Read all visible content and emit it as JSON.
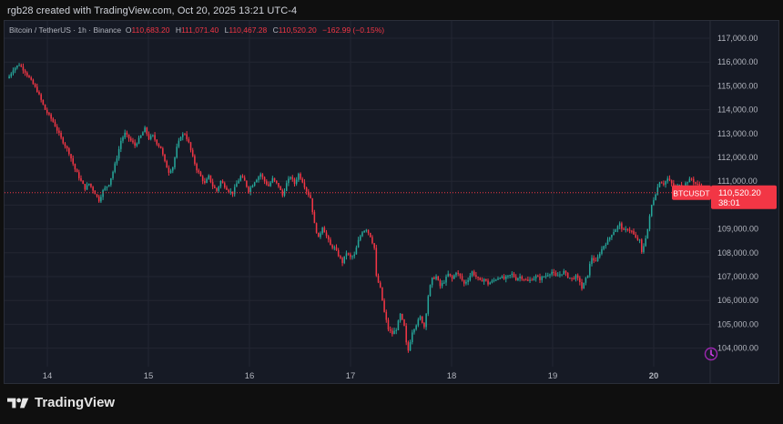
{
  "header": {
    "text": "rgb28 created with TradingView.com, Oct 20, 2025 13:21 UTC-4"
  },
  "legend": {
    "symbol": "Bitcoin / TetherUS · 1h · Binance",
    "o_label": "O",
    "o_value": "110,683.20",
    "h_label": "H",
    "h_value": "111,071.40",
    "l_label": "L",
    "l_value": "110,467.28",
    "c_label": "C",
    "c_value": "110,520.20",
    "change": "−162.99 (−0.15%)"
  },
  "price_tag": {
    "symbol": "BTCUSDT",
    "price": "110,520.20",
    "countdown": "38:01"
  },
  "footer": {
    "brand": "TradingView"
  },
  "icons": {
    "logo": "tradingview-logo-icon",
    "alert": "alert-clock-icon"
  },
  "colors": {
    "up": "#26a69a",
    "down": "#f23645",
    "background": "#161a25",
    "grid": "#232632"
  },
  "chart_data": {
    "type": "candlestick",
    "x_tick_labels": [
      "14",
      "15",
      "16",
      "17",
      "18",
      "19",
      "20"
    ],
    "y_tick_labels": [
      "104,000.00",
      "105,000.00",
      "106,000.00",
      "107,000.00",
      "108,000.00",
      "109,000.00",
      "110,000.00",
      "111,000.00",
      "112,000.00",
      "113,000.00",
      "114,000.00",
      "115,000.00",
      "116,000.00",
      "117,000.00"
    ],
    "ylim": [
      103500,
      117500
    ],
    "last_price": 110520.2,
    "grid": true,
    "series": [
      {
        "name": "",
        "close_path": [
          [
            0,
            115400
          ],
          [
            2,
            115700
          ],
          [
            5,
            115900
          ],
          [
            8,
            115600
          ],
          [
            11,
            115200
          ],
          [
            14,
            114800
          ],
          [
            18,
            114000
          ],
          [
            22,
            113500
          ],
          [
            26,
            112800
          ],
          [
            30,
            112200
          ],
          [
            33,
            111500
          ],
          [
            36,
            111000
          ],
          [
            38,
            110700
          ],
          [
            40,
            110900
          ],
          [
            43,
            110500
          ],
          [
            45,
            110200
          ],
          [
            47,
            110600
          ],
          [
            50,
            110900
          ],
          [
            52,
            111400
          ],
          [
            54,
            112000
          ],
          [
            56,
            112700
          ],
          [
            58,
            113000
          ],
          [
            60,
            112800
          ],
          [
            63,
            112500
          ],
          [
            66,
            112900
          ],
          [
            68,
            113200
          ],
          [
            70,
            112800
          ],
          [
            72,
            112900
          ],
          [
            74,
            112600
          ],
          [
            76,
            112400
          ],
          [
            78,
            111800
          ],
          [
            80,
            111400
          ],
          [
            82,
            111600
          ],
          [
            84,
            112400
          ],
          [
            86,
            112900
          ],
          [
            88,
            113000
          ],
          [
            90,
            112600
          ],
          [
            92,
            112000
          ],
          [
            94,
            111500
          ],
          [
            96,
            111200
          ],
          [
            98,
            110900
          ],
          [
            100,
            111200
          ],
          [
            102,
            110800
          ],
          [
            104,
            110600
          ],
          [
            106,
            111000
          ],
          [
            108,
            110800
          ],
          [
            110,
            110600
          ],
          [
            112,
            110500
          ],
          [
            114,
            110900
          ],
          [
            116,
            111200
          ],
          [
            118,
            111000
          ],
          [
            120,
            110600
          ],
          [
            123,
            111000
          ],
          [
            126,
            111300
          ],
          [
            128,
            111000
          ],
          [
            130,
            110800
          ],
          [
            132,
            111100
          ],
          [
            135,
            110800
          ],
          [
            137,
            110400
          ],
          [
            139,
            110900
          ],
          [
            141,
            111200
          ],
          [
            143,
            110900
          ],
          [
            145,
            111300
          ],
          [
            147,
            111000
          ],
          [
            149,
            110600
          ],
          [
            151,
            110300
          ],
          [
            153,
            109200
          ],
          [
            155,
            108600
          ],
          [
            157,
            109100
          ],
          [
            159,
            108700
          ],
          [
            161,
            108300
          ],
          [
            163,
            108200
          ],
          [
            165,
            107900
          ],
          [
            167,
            107600
          ],
          [
            169,
            108000
          ],
          [
            171,
            107800
          ],
          [
            173,
            107900
          ],
          [
            175,
            108500
          ],
          [
            177,
            108900
          ],
          [
            179,
            109000
          ],
          [
            181,
            108700
          ],
          [
            183,
            108200
          ],
          [
            184,
            107000
          ],
          [
            186,
            106500
          ],
          [
            188,
            105500
          ],
          [
            190,
            104800
          ],
          [
            192,
            104600
          ],
          [
            194,
            104800
          ],
          [
            196,
            105400
          ],
          [
            198,
            104900
          ],
          [
            199,
            104200
          ],
          [
            200,
            103900
          ],
          [
            202,
            104700
          ],
          [
            204,
            105000
          ],
          [
            206,
            105300
          ],
          [
            208,
            104900
          ],
          [
            209,
            105500
          ],
          [
            210,
            106200
          ],
          [
            211,
            106600
          ],
          [
            212,
            106900
          ],
          [
            214,
            107000
          ],
          [
            216,
            106600
          ],
          [
            218,
            106800
          ],
          [
            220,
            107100
          ],
          [
            222,
            106900
          ],
          [
            224,
            107200
          ],
          [
            226,
            107000
          ],
          [
            228,
            106700
          ],
          [
            230,
            106900
          ],
          [
            232,
            107200
          ],
          [
            234,
            107000
          ],
          [
            236,
            106800
          ],
          [
            238,
            106900
          ],
          [
            240,
            106700
          ],
          [
            242,
            106800
          ],
          [
            244,
            106900
          ],
          [
            246,
            107000
          ],
          [
            248,
            106900
          ],
          [
            250,
            107000
          ],
          [
            252,
            107100
          ],
          [
            254,
            106900
          ],
          [
            256,
            107000
          ],
          [
            258,
            106900
          ],
          [
            260,
            106800
          ],
          [
            262,
            106900
          ],
          [
            264,
            107000
          ],
          [
            266,
            106900
          ],
          [
            268,
            107000
          ],
          [
            270,
            107100
          ],
          [
            272,
            107200
          ],
          [
            274,
            107000
          ],
          [
            276,
            107100
          ],
          [
            278,
            107200
          ],
          [
            280,
            107000
          ],
          [
            282,
            106900
          ],
          [
            284,
            107000
          ],
          [
            286,
            106800
          ],
          [
            287,
            106500
          ],
          [
            288,
            106700
          ],
          [
            289,
            106900
          ],
          [
            290,
            107100
          ],
          [
            291,
            107500
          ],
          [
            292,
            107800
          ],
          [
            294,
            107600
          ],
          [
            296,
            108000
          ],
          [
            298,
            108300
          ],
          [
            300,
            108500
          ],
          [
            302,
            108800
          ],
          [
            304,
            109000
          ],
          [
            306,
            109200
          ],
          [
            308,
            108900
          ],
          [
            310,
            109000
          ],
          [
            312,
            108900
          ],
          [
            314,
            108600
          ],
          [
            316,
            108500
          ],
          [
            317,
            108000
          ],
          [
            318,
            108300
          ],
          [
            320,
            109000
          ],
          [
            322,
            110000
          ],
          [
            324,
            110500
          ],
          [
            326,
            111000
          ],
          [
            328,
            110900
          ],
          [
            330,
            111100
          ],
          [
            332,
            110900
          ],
          [
            334,
            110700
          ],
          [
            336,
            110900
          ],
          [
            338,
            110800
          ],
          [
            340,
            111000
          ],
          [
            342,
            111100
          ],
          [
            344,
            110900
          ],
          [
            346,
            110800
          ],
          [
            348,
            110700
          ],
          [
            349,
            110520
          ]
        ]
      }
    ]
  }
}
